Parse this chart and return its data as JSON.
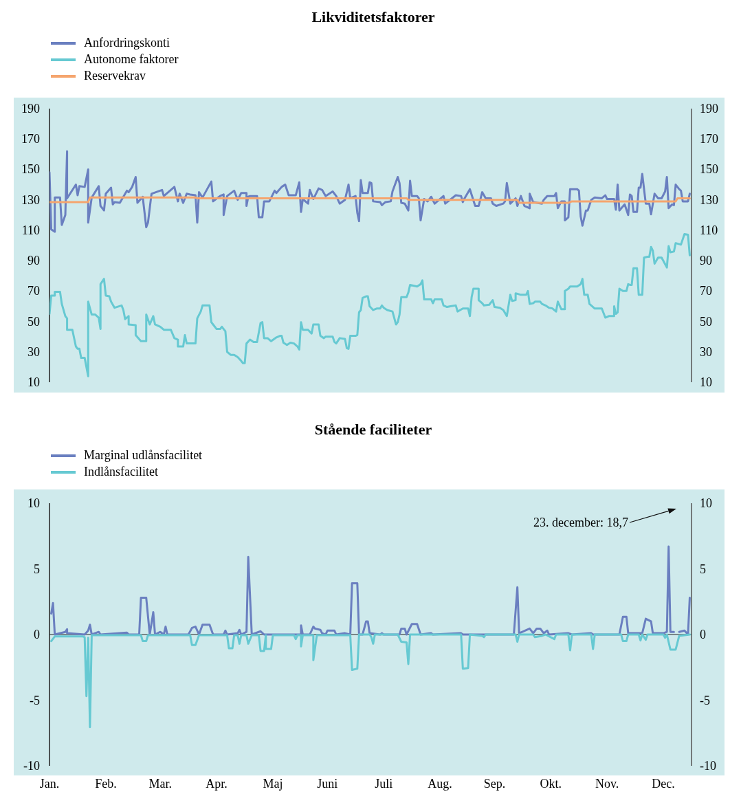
{
  "chart_data": [
    {
      "type": "line",
      "title": "Likviditetsfaktorer",
      "legend": "top left",
      "tick_labels": "y",
      "xlim": [
        "--01-01",
        "--12-31"
      ],
      "ylim": [
        10,
        190
      ],
      "yticks": [
        10,
        30,
        50,
        70,
        90,
        110,
        130,
        150,
        170,
        190
      ],
      "y2lim": [
        10,
        190
      ],
      "y2ticks": [
        10,
        30,
        50,
        70,
        90,
        110,
        130,
        150,
        170,
        190
      ],
      "series": [
        {
          "name": "Anfordringskonti",
          "color": "#6a7fc0",
          "x": [
            "--01-01",
            "--01-02",
            "--01-04",
            "--01-04",
            "--01-07",
            "--01-08",
            "--01-10",
            "--01-11",
            "--01-11",
            "--01-16",
            "--01-17",
            "--01-18",
            "--01-21",
            "--01-23",
            "--01-23",
            "--01-25",
            "--01-29",
            "--01-30",
            "--02-01",
            "--02-02",
            "--02-05",
            "--02-06",
            "--02-07",
            "--02-10",
            "--02-14",
            "--02-15",
            "--02-17",
            "--02-19",
            "--02-20",
            "--02-23",
            "--02-25",
            "--02-26",
            "--02-28",
            "--03-06",
            "--03-07",
            "--03-13",
            "--03-15",
            "--03-16",
            "--03-18",
            "--03-20",
            "--03-22",
            "--03-25",
            "--03-26",
            "--03-27",
            "--03-29",
            "--04-03",
            "--04-04",
            "--04-08",
            "--04-10",
            "--04-10",
            "--04-12",
            "--04-16",
            "--04-18",
            "--04-20",
            "--04-23",
            "--04-23",
            "--04-24",
            "--04-25",
            "--04-29",
            "--04-30",
            "--05-02",
            "--05-03",
            "--05-06",
            "--05-09",
            "--05-10",
            "--05-13",
            "--05-15",
            "--05-17",
            "--05-21",
            "--05-23",
            "--05-24",
            "--05-25",
            "--05-28",
            "--05-29",
            "--05-31",
            "--06-03",
            "--06-05",
            "--06-07",
            "--06-11",
            "--06-13",
            "--06-15",
            "--06-18",
            "--06-20",
            "--06-21",
            "--06-24",
            "--06-25",
            "--06-26",
            "--06-27",
            "--06-28",
            "--07-01",
            "--07-02",
            "--07-03",
            "--07-04",
            "--07-08",
            "--07-09",
            "--07-11",
            "--07-14",
            "--07-15",
            "--07-18",
            "--07-19",
            "--07-20",
            "--07-22",
            "--07-24",
            "--07-25",
            "--07-26",
            "--07-29",
            "--07-30",
            "--07-31",
            "--08-02",
            "--08-04",
            "--08-06",
            "--08-08",
            "--08-13",
            "--08-14",
            "--08-20",
            "--08-23",
            "--08-24",
            "--08-25",
            "--08-28",
            "--08-31",
            "--09-02",
            "--09-04",
            "--09-06",
            "--09-09",
            "--09-10",
            "--09-12",
            "--09-16",
            "--09-17",
            "--09-18",
            "--09-20",
            "--09-23",
            "--09-24",
            "--09-26",
            "--09-28",
            "--10-01",
            "--10-01",
            "--10-03",
            "--10-08",
            "--10-09",
            "--10-11",
            "--10-15",
            "--10-16",
            "--10-17",
            "--10-19",
            "--10-21",
            "--10-21",
            "--10-23",
            "--10-24",
            "--10-28",
            "--10-29",
            "--10-30",
            "--10-31",
            "--11-02",
            "--11-03",
            "--11-05",
            "--11-07",
            "--11-11",
            "--11-13",
            "--11-14",
            "--11-18",
            "--11-19",
            "--11-20",
            "--11-21",
            "--11-24",
            "--11-26",
            "--11-27",
            "--11-28",
            "--11-29",
            "--12-01",
            "--12-02",
            "--12-03",
            "--12-04",
            "--12-06",
            "--12-08",
            "--12-09",
            "--12-11",
            "--12-13",
            "--12-15",
            "--12-17",
            "--12-18",
            "--12-19",
            "--12-21",
            "--12-22",
            "--12-23",
            "--12-25",
            "--12-26",
            "--12-27",
            "--12-30",
            "--12-31"
          ],
          "values": [
            148,
            110.5,
            109,
            131.5,
            131.5,
            113.5,
            120,
            162,
            131,
            140,
            133,
            139,
            138.5,
            150,
            115,
            131.5,
            139,
            126,
            123,
            134,
            138,
            127,
            128.5,
            128,
            136,
            135,
            138.5,
            145,
            128,
            132,
            112,
            115,
            134,
            136.5,
            132.5,
            138.5,
            129,
            134,
            128,
            134,
            133.5,
            133,
            115,
            135,
            131.5,
            142,
            129,
            132.5,
            133.5,
            120,
            132.5,
            136,
            130,
            134.5,
            134.5,
            126,
            132,
            132.5,
            132.5,
            118.5,
            118.5,
            129,
            129,
            136,
            134.5,
            138.5,
            140,
            133,
            133,
            141.5,
            122,
            130.5,
            127.5,
            136.5,
            130.5,
            137.5,
            136.5,
            132.5,
            135.5,
            132.5,
            127.5,
            130,
            140,
            131,
            132.5,
            121.5,
            116,
            143,
            134.5,
            134.5,
            141.5,
            141,
            129,
            128.5,
            126.5,
            128.5,
            129,
            135.5,
            145,
            141,
            128,
            127.5,
            123,
            142.5,
            132.5,
            132.5,
            131,
            116.5,
            130.5,
            129,
            132,
            127.5,
            132.5,
            127.5,
            133,
            132.5,
            128.5,
            131,
            137,
            126,
            126,
            135,
            131,
            131,
            127.5,
            126,
            127.5,
            129,
            141,
            127.5,
            131,
            126,
            132.5,
            126,
            124.5,
            134,
            128.5,
            127.5,
            130,
            132.5,
            132.5,
            134.5,
            124.5,
            129,
            129,
            116.5,
            118.5,
            137,
            137,
            136,
            119,
            113,
            123,
            123,
            130,
            131.5,
            131,
            133,
            130.5,
            130.5,
            123.5,
            140,
            123,
            127,
            120,
            133.5,
            132.5,
            122,
            122,
            138,
            138,
            147,
            127.5,
            127.5,
            120.5,
            134,
            131,
            131,
            135.5,
            145,
            124.5,
            127,
            126.5,
            140,
            137,
            136,
            129,
            129,
            134
          ]
        },
        {
          "name": "Autonome faktorer",
          "color": "#66c9d2",
          "x": [
            "--01-01",
            "--01-02",
            "--01-04",
            "--01-04",
            "--01-07",
            "--01-08",
            "--01-10",
            "--01-11",
            "--01-11",
            "--01-14",
            "--01-16",
            "--01-17",
            "--01-18",
            "--01-19",
            "--01-21",
            "--01-23",
            "--01-23",
            "--01-25",
            "--01-27",
            "--01-29",
            "--01-30",
            "--01-30",
            "--02-01",
            "--02-02",
            "--02-04",
            "--02-05",
            "--02-07",
            "--02-11",
            "--02-12",
            "--02-13",
            "--02-15",
            "--02-15",
            "--02-19",
            "--02-19",
            "--02-22",
            "--02-25",
            "--02-25",
            "--02-27",
            "--03-01",
            "--03-02",
            "--03-05",
            "--03-07",
            "--03-11",
            "--03-13",
            "--03-15",
            "--03-15",
            "--03-18",
            "--03-19",
            "--03-20",
            "--03-25",
            "--03-26",
            "--03-28",
            "--03-29",
            "--04-02",
            "--04-03",
            "--04-04",
            "--04-06",
            "--04-08",
            "--04-09",
            "--04-11",
            "--04-12",
            "--04-14",
            "--04-16",
            "--04-18",
            "--04-20",
            "--04-21",
            "--04-22",
            "--04-23",
            "--04-25",
            "--04-27",
            "--04-29",
            "--05-01",
            "--05-02",
            "--05-03",
            "--05-05",
            "--05-07",
            "--05-10",
            "--05-12",
            "--05-13",
            "--05-14",
            "--05-16",
            "--05-18",
            "--05-20",
            "--05-22",
            "--05-23",
            "--05-24",
            "--05-25",
            "--05-28",
            "--05-30",
            "--05-31",
            "--06-03",
            "--06-04",
            "--06-06",
            "--06-07",
            "--06-11",
            "--06-12",
            "--06-13",
            "--06-15",
            "--06-18",
            "--06-19",
            "--06-20",
            "--06-21",
            "--06-24",
            "--06-25",
            "--06-26",
            "--06-27",
            "--06-28",
            "--06-30",
            "--07-01",
            "--07-02",
            "--07-04",
            "--07-06",
            "--07-08",
            "--07-09",
            "--07-10",
            "--07-12",
            "--07-15",
            "--07-17",
            "--07-18",
            "--07-19",
            "--07-20",
            "--07-23",
            "--07-24",
            "--07-25",
            "--07-29",
            "--07-31",
            "--08-01",
            "--08-02",
            "--08-06",
            "--08-07",
            "--08-08",
            "--08-12",
            "--08-13",
            "--08-15",
            "--08-17",
            "--08-20",
            "--08-21",
            "--08-24",
            "--08-27",
            "--08-28",
            "--08-29",
            "--08-30",
            "--09-02",
            "--09-02",
            "--09-04",
            "--09-05",
            "--09-08",
            "--09-10",
            "--09-11",
            "--09-14",
            "--09-16",
            "--09-18",
            "--09-20",
            "--09-21",
            "--09-23",
            "--09-23",
            "--09-26",
            "--09-29",
            "--09-30",
            "--10-01",
            "--10-03",
            "--10-04",
            "--10-07",
            "--10-08",
            "--10-10",
            "--10-12",
            "--10-14",
            "--10-16",
            "--10-17",
            "--10-19",
            "--10-21",
            "--10-21",
            "--10-23",
            "--10-24",
            "--10-28",
            "--10-30",
            "--10-31",
            "--11-01",
            "--11-03",
            "--11-04",
            "--11-07",
            "--11-11",
            "--11-13",
            "--11-15",
            "--11-18",
            "--11-18",
            "--11-19",
            "--11-20",
            "--11-21",
            "--11-23",
            "--11-25",
            "--11-26",
            "--11-27",
            "--11-28",
            "--11-29",
            "--12-01",
            "--12-02",
            "--12-04",
            "--12-05",
            "--12-07",
            "--12-08",
            "--12-09",
            "--12-10",
            "--12-11",
            "--12-13",
            "--12-15",
            "--12-18",
            "--12-19",
            "--12-20",
            "--12-22",
            "--12-23",
            "--12-26",
            "--12-26",
            "--12-28",
            "--12-30",
            "--12-31"
          ],
          "values": [
            55,
            67,
            67,
            69.5,
            69.5,
            61.5,
            53.5,
            52,
            44.5,
            44.5,
            33.5,
            32,
            32,
            26,
            26,
            14,
            63,
            54.5,
            54.5,
            52.5,
            45,
            74.5,
            78,
            67,
            66.5,
            63,
            59,
            60.5,
            57.5,
            51.5,
            53.5,
            48,
            47.5,
            41,
            37,
            37,
            54.5,
            48,
            53.5,
            48,
            46.5,
            44.5,
            44.5,
            39,
            38,
            33.5,
            33.5,
            41,
            35.5,
            35.5,
            52,
            56.5,
            60.5,
            60.5,
            49.5,
            48,
            45,
            45,
            46.5,
            43.5,
            30,
            28,
            28,
            26.5,
            24,
            22.5,
            22.5,
            35.5,
            38,
            36.5,
            36.5,
            49,
            49.5,
            39,
            39,
            37,
            39.5,
            40.5,
            40.5,
            36,
            34.5,
            36,
            35.5,
            33.5,
            31.5,
            49.5,
            44.5,
            44.5,
            42,
            48,
            48,
            40.5,
            39,
            40,
            40,
            36.5,
            35.5,
            39,
            38.5,
            32.5,
            32,
            40.5,
            40.5,
            41,
            56,
            57.5,
            65.5,
            66.5,
            66.5,
            60,
            57.5,
            58.5,
            58.5,
            60.5,
            59,
            57.5,
            56.5,
            48,
            49.5,
            54.5,
            66,
            66,
            69,
            74,
            73,
            74.5,
            77,
            64.5,
            64.5,
            62,
            64.5,
            64.5,
            60.5,
            59.5,
            60,
            60.5,
            56.5,
            58.5,
            58.5,
            53.5,
            66,
            71.5,
            71.5,
            64,
            62,
            60.5,
            61,
            64,
            59.5,
            59,
            57.5,
            53.5,
            67.5,
            63.5,
            64,
            68.5,
            67.5,
            67.5,
            70,
            61.5,
            62,
            63,
            63,
            61.5,
            60.5,
            59,
            58.5,
            56.5,
            63,
            58,
            58,
            70,
            71.5,
            73,
            73,
            74.5,
            78,
            67.5,
            67.5,
            61.5,
            58.5,
            58.5,
            52.5,
            53.5,
            53.5,
            60,
            55,
            56,
            71.5,
            70,
            70,
            74.5,
            74,
            74,
            85,
            85,
            67.5,
            67.5,
            92,
            92.5,
            92.5,
            99,
            96.5,
            88,
            92,
            92,
            85.5,
            99.5,
            95.5,
            96,
            101.5,
            100.5,
            100.5,
            107.5,
            107,
            93.5
          ]
        },
        {
          "name": "Reservekrav",
          "color": "#f5a56e",
          "x": [
            "--01-01",
            "--01-23",
            "--01-24",
            "--03-25",
            "--03-26",
            "--07-23",
            "--07-24",
            "--09-24",
            "--09-25",
            "--10-23",
            "--10-25",
            "--12-23",
            "--12-24",
            "--12-31"
          ],
          "values": [
            128.5,
            128.5,
            131.5,
            131.5,
            131,
            131,
            130,
            130,
            128,
            128,
            129,
            129,
            131,
            131
          ]
        }
      ]
    },
    {
      "type": "line",
      "title": "Stående faciliteter",
      "legend": "top left",
      "xlim": [
        "--01-01",
        "--12-31"
      ],
      "xticks": [
        {
          "value": "--01-01",
          "label": "Jan."
        },
        {
          "value": "--02-02",
          "label": "Feb."
        },
        {
          "value": "--03-05",
          "label": "Mar."
        },
        {
          "value": "--04-06",
          "label": "Apr."
        },
        {
          "value": "--05-08",
          "label": "Maj"
        },
        {
          "value": "--06-08",
          "label": "Juni"
        },
        {
          "value": "--07-10",
          "label": "Juli"
        },
        {
          "value": "--08-11",
          "label": "Aug."
        },
        {
          "value": "--09-11",
          "label": "Sep."
        },
        {
          "value": "--10-13",
          "label": "Okt."
        },
        {
          "value": "--11-14",
          "label": "Nov."
        },
        {
          "value": "--12-16",
          "label": "Dec."
        }
      ],
      "ylim": [
        -10,
        10
      ],
      "yticks": [
        -10,
        -5,
        0,
        5,
        10
      ],
      "y2lim": [
        -10,
        10
      ],
      "y2ticks": [
        -10,
        -5,
        0,
        5,
        10
      ],
      "annotations": [
        "23. december: 18,7"
      ],
      "series": [
        {
          "name": "Marginal udlånsfacilitet",
          "color": "#6a7fc0",
          "x": [
            "--01-02",
            "--01-03",
            "--01-04",
            "--01-10",
            "--01-11",
            "--01-11",
            "--01-21",
            "--01-23",
            "--01-24",
            "--01-25",
            "--01-29",
            "--01-30",
            "--02-14",
            "--02-15",
            "--02-21",
            "--02-22",
            "--02-25",
            "--02-27",
            "--03-01",
            "--03-02",
            "--03-05",
            "--03-07",
            "--03-08",
            "--03-09",
            "--03-21",
            "--03-23",
            "--03-25",
            "--03-27",
            "--03-29",
            "--04-02",
            "--04-04",
            "--04-10",
            "--04-11",
            "--04-12",
            "--04-18",
            "--04-19",
            "--04-20",
            "--04-23",
            "--04-24",
            "--04-26",
            "--05-01",
            "--05-03",
            "--05-04",
            "--05-12",
            "--05-24",
            "--05-24",
            "--05-25",
            "--05-29",
            "--05-31",
            "--06-01",
            "--06-04",
            "--06-05",
            "--06-07",
            "--06-08",
            "--06-12",
            "--06-13",
            "--06-18",
            "--06-21",
            "--06-22",
            "--06-25",
            "--06-26",
            "--06-28",
            "--06-30",
            "--07-01",
            "--07-02",
            "--07-08",
            "--07-09",
            "--07-10",
            "--07-19",
            "--07-20",
            "--07-22",
            "--07-23",
            "--07-26",
            "--07-29",
            "--07-31",
            "--08-06",
            "--08-07",
            "--08-23",
            "--08-24",
            "--09-22",
            "--09-24",
            "--09-25",
            "--10-01",
            "--10-03",
            "--10-05",
            "--10-07",
            "--10-09",
            "--10-11",
            "--10-12",
            "--10-23",
            "--10-25",
            "--11-05",
            "--11-06",
            "--11-21",
            "--11-23",
            "--11-25",
            "--11-26",
            "--12-04",
            "--12-06",
            "--12-09",
            "--12-10",
            "--12-16",
            "--12-18",
            "--12-19",
            "--12-20",
            "--12-22",
            "--12-23",
            "--12-25",
            "--12-28",
            "--12-30",
            "--12-31"
          ],
          "values": [
            1.6,
            2.4,
            0,
            0.2,
            0.4,
            0.1,
            0,
            0.3,
            0.75,
            0,
            0.2,
            0,
            0.15,
            0,
            0,
            2.8,
            2.8,
            0,
            1.7,
            0,
            0.2,
            0,
            0.6,
            0,
            0,
            0.5,
            0.6,
            0,
            0.75,
            0.75,
            0,
            0,
            0.3,
            0,
            0.1,
            0.35,
            0,
            0.2,
            5.9,
            0,
            0.25,
            0,
            0,
            0,
            0,
            0.7,
            0,
            0,
            0.6,
            0.45,
            0.35,
            0.1,
            0,
            0.3,
            0.3,
            0,
            0.1,
            0,
            3.9,
            3.9,
            0,
            0,
            1,
            1,
            0.1,
            0,
            0.1,
            0,
            0,
            0.45,
            0.45,
            0,
            0.8,
            0.8,
            0,
            0.1,
            0,
            0.1,
            0,
            0,
            3.6,
            0.1,
            0.45,
            0.1,
            0.45,
            0.45,
            0.1,
            0.3,
            0,
            0.1,
            0,
            0.1,
            0,
            0,
            1.35,
            1.35,
            0.1,
            0.1,
            1.2,
            1,
            0.1,
            0.1,
            0.2,
            6.7,
            0.2,
            0.2,
            null,
            0.2,
            0.3,
            0,
            2.8
          ]
        },
        {
          "name": "Indlånsfacilitet",
          "color": "#66c9d2",
          "x": [
            "--01-02",
            "--01-04",
            "--01-20",
            "--01-21",
            "--01-22",
            "--01-23",
            "--01-24",
            "--01-25",
            "--02-22",
            "--02-23",
            "--02-25",
            "--02-26",
            "--03-22",
            "--03-23",
            "--03-25",
            "--03-27",
            "--04-12",
            "--04-13",
            "--04-15",
            "--04-16",
            "--04-18",
            "--04-19",
            "--04-20",
            "--04-23",
            "--04-24",
            "--04-26",
            "--04-30",
            "--05-01",
            "--05-03",
            "--05-04",
            "--05-04",
            "--05-07",
            "--05-08",
            "--05-20",
            "--05-21",
            "--05-22",
            "--05-24",
            "--05-24",
            "--05-25",
            "--05-31",
            "--05-31",
            "--06-02",
            "--06-21",
            "--06-22",
            "--06-25",
            "--06-26",
            "--07-02",
            "--07-03",
            "--07-04",
            "--07-05",
            "--07-18",
            "--07-20",
            "--07-23",
            "--07-24",
            "--07-25",
            "--08-23",
            "--08-24",
            "--08-27",
            "--08-28",
            "--09-04",
            "--09-05",
            "--09-06",
            "--09-23",
            "--09-24",
            "--09-25",
            "--10-03",
            "--10-04",
            "--10-08",
            "--10-10",
            "--10-15",
            "--10-16",
            "--10-23",
            "--10-24",
            "--10-25",
            "--11-05",
            "--11-06",
            "--11-07",
            "--11-22",
            "--11-23",
            "--11-25",
            "--11-26",
            "--12-02",
            "--12-03",
            "--12-04",
            "--12-06",
            "--12-07",
            "--12-16",
            "--12-17",
            "--12-18",
            "--12-20",
            "--12-23",
            "--12-25",
            "--12-31"
          ],
          "values": [
            -0.5,
            -0.15,
            -0.15,
            -0.2,
            -4.7,
            -0.25,
            -7.05,
            -0.05,
            -0.05,
            -0.5,
            -0.5,
            -0.05,
            -0.05,
            -0.8,
            -0.8,
            -0.05,
            -0.05,
            -1.05,
            -1.05,
            -0.05,
            -0.05,
            -0.7,
            -0.05,
            -0.05,
            -0.7,
            -0.05,
            -0.05,
            -1.25,
            -1.25,
            -0.05,
            -1.1,
            -1.1,
            -0.05,
            -0.05,
            -0.35,
            -0.05,
            -0.05,
            -0.9,
            -0.05,
            -0.05,
            -1.95,
            -0.05,
            -0.05,
            -2.7,
            -2.6,
            0,
            0,
            -0.2,
            -0.7,
            0,
            0,
            -0.55,
            -0.6,
            -2.25,
            0,
            0,
            -2.6,
            -2.55,
            0,
            -0.1,
            -0.2,
            0,
            0,
            -0.55,
            0,
            0,
            -0.2,
            -0.1,
            0,
            -0.35,
            0,
            0,
            -1.2,
            0,
            0,
            -1.1,
            0,
            0,
            -0.5,
            -0.5,
            0,
            0,
            -0.45,
            0,
            -0.4,
            0,
            0,
            -0.25,
            0,
            -1.15,
            -1.15,
            -0.1,
            0
          ]
        }
      ]
    }
  ]
}
